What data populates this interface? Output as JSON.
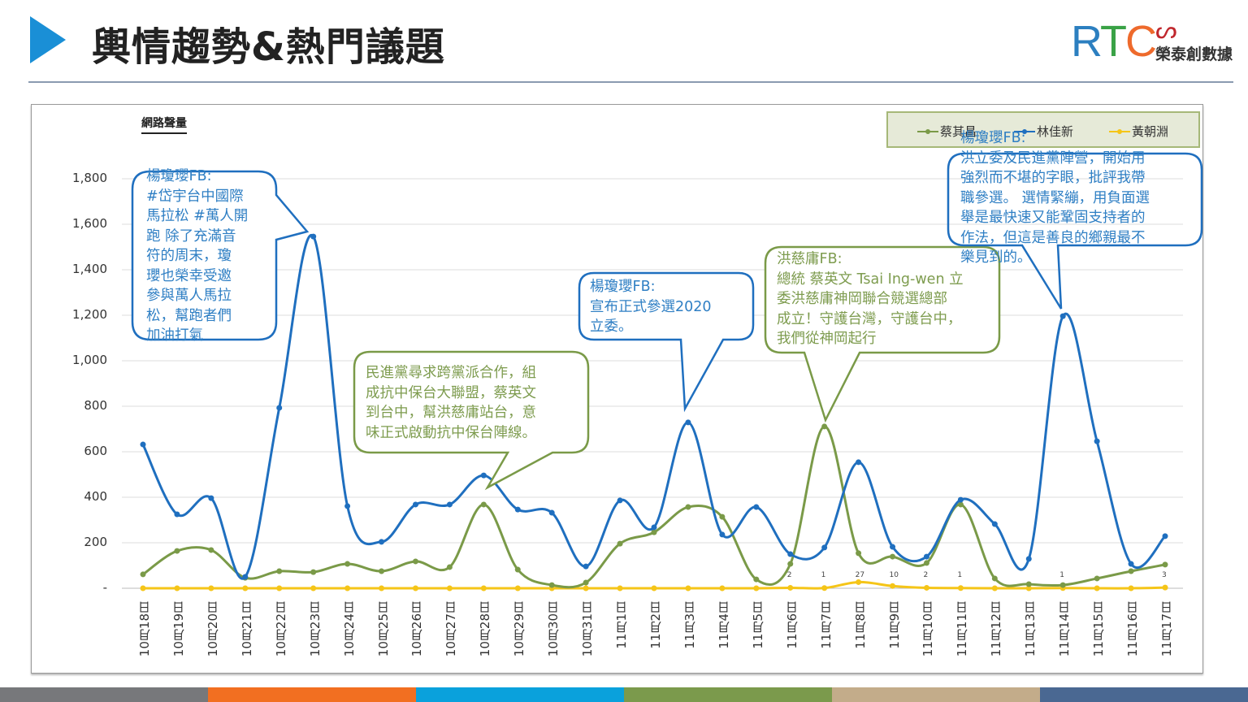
{
  "header": {
    "title": "輿情趨勢&熱門議題"
  },
  "logo": {
    "mark": "RTC",
    "company": "榮泰創數據"
  },
  "colors": {
    "accent": "#1a8fd6",
    "tsai": "#7a9a48",
    "lin": "#1f6fbf",
    "huang": "#f5c518",
    "footer": [
      "#77787b",
      "#f26f21",
      "#0aa1dc",
      "#7b9a4c",
      "#c3ac8a",
      "#4a6892"
    ]
  },
  "chart_data": {
    "type": "line",
    "title": "網路聲量",
    "xlabel": "",
    "ylabel": "",
    "ylim": [
      0,
      1800
    ],
    "yticks": [
      "-",
      "200",
      "400",
      "600",
      "800",
      "1,000",
      "1,200",
      "1,400",
      "1,600",
      "1,800"
    ],
    "grid": true,
    "legend_position": "top-right",
    "categories": [
      "10月18日",
      "10月19日",
      "10月20日",
      "10月21日",
      "10月22日",
      "10月23日",
      "10月24日",
      "10月25日",
      "10月26日",
      "10月27日",
      "10月28日",
      "10月29日",
      "10月30日",
      "10月31日",
      "11月1日",
      "11月2日",
      "11月3日",
      "11月4日",
      "11月5日",
      "11月6日",
      "11月7日",
      "11月8日",
      "11月9日",
      "11月10日",
      "11月11日",
      "11月12日",
      "11月13日",
      "11月14日",
      "11月15日",
      "11月16日",
      "11月17日"
    ],
    "series": [
      {
        "name": "蔡其昌",
        "values": [
          61,
          164,
          168,
          46,
          75,
          71,
          107,
          75,
          118,
          93,
          368,
          82,
          14,
          25,
          196,
          246,
          357,
          314,
          39,
          107,
          711,
          154,
          139,
          111,
          368,
          43,
          18,
          14,
          43,
          75,
          104
        ]
      },
      {
        "name": "林佳新",
        "values": [
          632,
          325,
          396,
          50,
          793,
          1546,
          361,
          204,
          368,
          368,
          496,
          346,
          332,
          96,
          386,
          268,
          729,
          236,
          357,
          150,
          179,
          554,
          182,
          139,
          389,
          282,
          129,
          1196,
          646,
          107,
          229
        ]
      },
      {
        "name": "黃朝淵",
        "values": [
          0,
          0,
          0,
          0,
          0,
          0,
          0,
          0,
          0,
          0,
          0,
          0,
          0,
          0,
          0,
          0,
          0,
          0,
          0,
          2,
          1,
          27,
          10,
          2,
          1,
          0,
          0,
          1,
          0,
          0,
          3
        ],
        "data_labels": [
          "",
          "",
          "",
          "",
          "",
          "",
          "",
          "",
          "",
          "",
          "",
          "",
          "",
          "",
          "",
          "",
          "",
          "",
          "",
          "2",
          "1",
          "27",
          "10",
          "2",
          "1",
          "",
          "",
          "1",
          "",
          "",
          "3"
        ]
      }
    ],
    "annotations": [
      {
        "lines": [
          "楊瓊瓔FB:",
          "#岱宇台中國際",
          "馬拉松 #萬人開",
          "跑 除了充滿音",
          "符的周末，瓊",
          "瓔也榮幸受邀",
          "參與萬人馬拉",
          "松，幫跑者們",
          "加油打氣"
        ]
      },
      {
        "lines": [
          "民進黨尋求跨黨派合作，組",
          "成抗中保台大聯盟，蔡英文",
          "到台中，幫洪慈庸站台，意",
          "味正式啟動抗中保台陣線。"
        ]
      },
      {
        "lines": [
          "楊瓊瓔FB:",
          "宣布正式參選2020",
          "立委。"
        ]
      },
      {
        "lines": [
          "洪慈庸FB:",
          "總統 蔡英文 Tsai Ing-wen 立",
          "委洪慈庸神岡聯合競選總部",
          "成立！守護台灣，守護台中，",
          "我們從神岡起行"
        ]
      },
      {
        "lines": [
          "楊瓊瓔FB:",
          "洪立委及民進黨陣營，開始用",
          "強烈而不堪的字眼，批評我帶",
          "職參選。 選情緊繃，用負面選",
          "舉是最快速又能鞏固支持者的",
          "作法，但這是善良的鄉親最不",
          "樂見到的。"
        ]
      }
    ]
  }
}
